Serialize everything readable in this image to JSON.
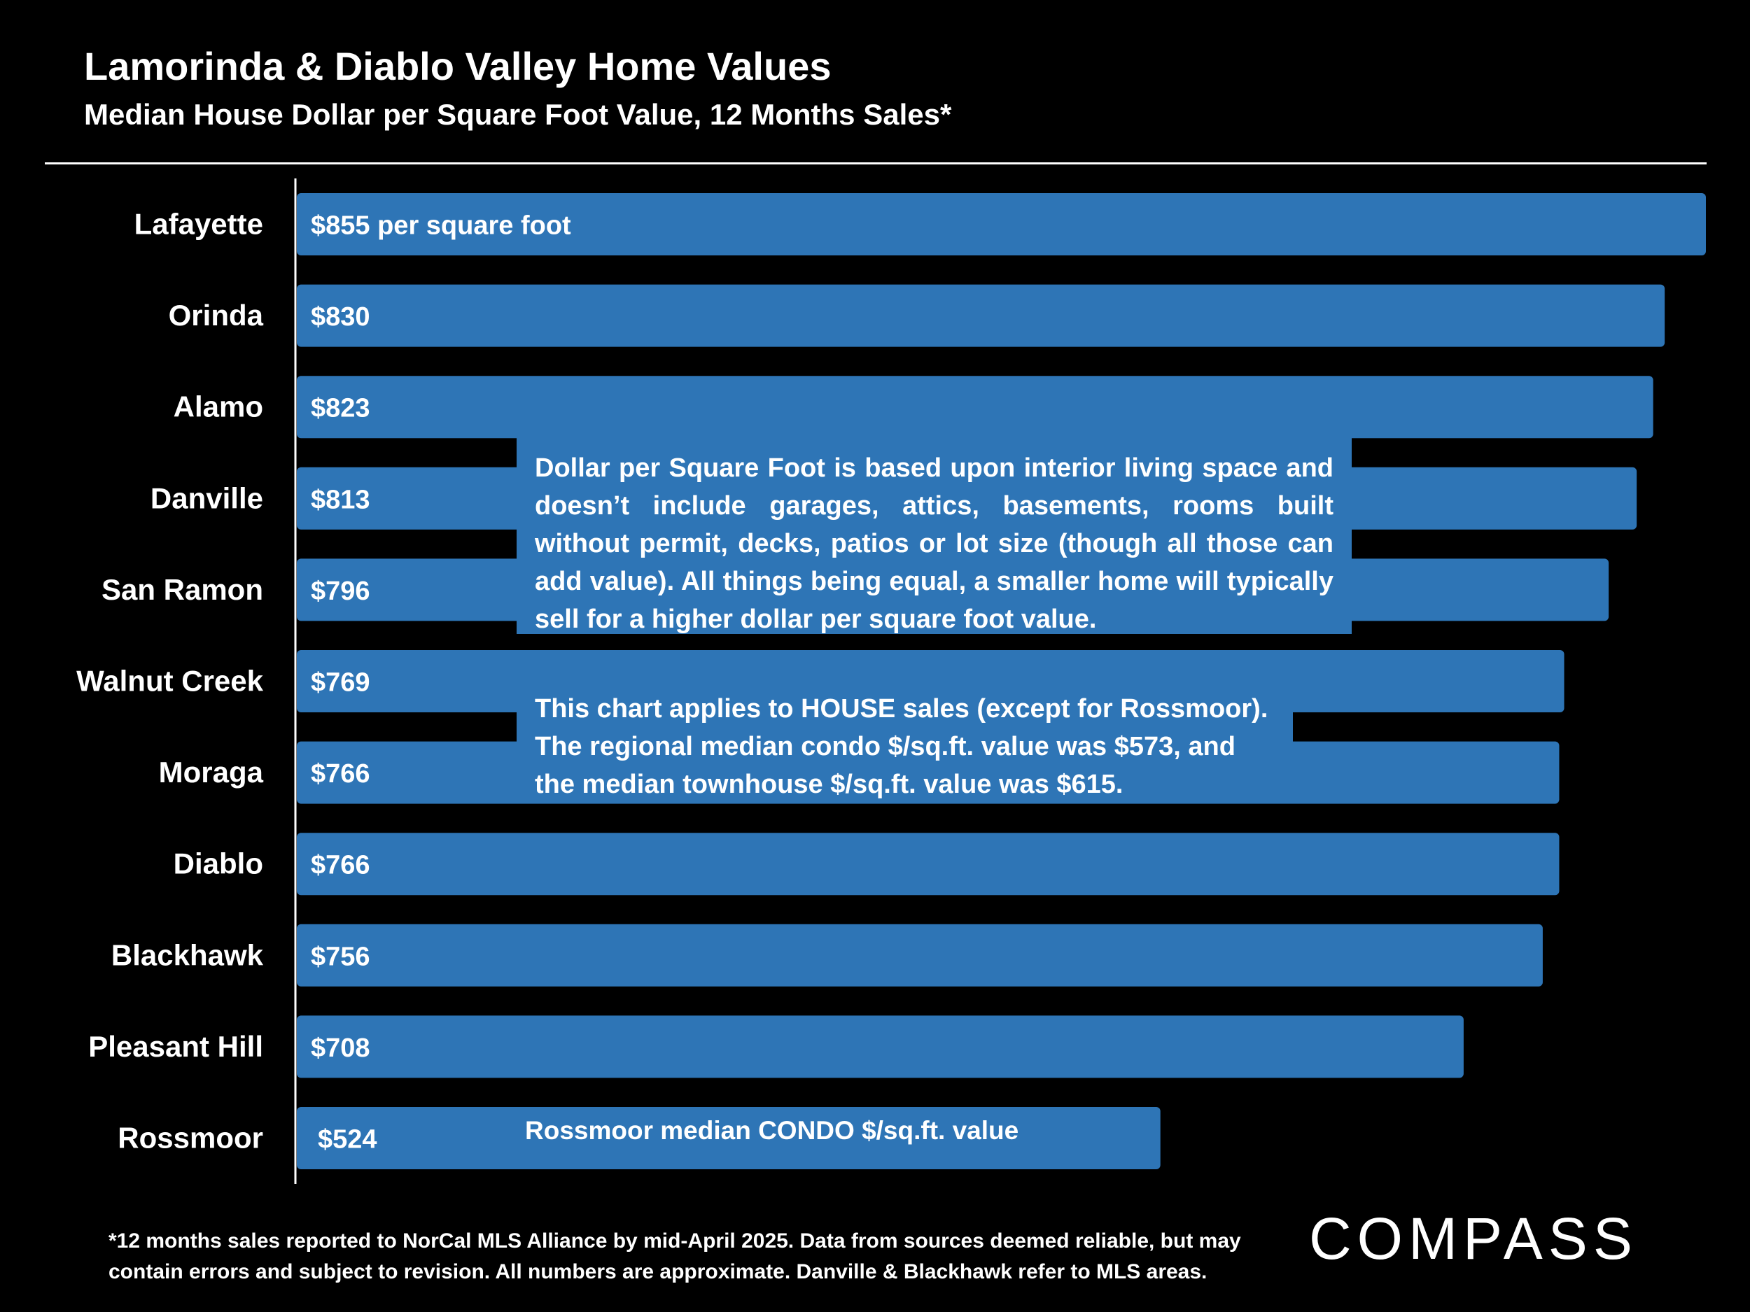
{
  "title": "Lamorinda & Diablo Valley Home Values",
  "subtitle": "Median House Dollar per Square Foot Value, 12 Months Sales*",
  "chart_data": {
    "type": "bar",
    "orientation": "horizontal",
    "categories": [
      "Lafayette",
      "Orinda",
      "Alamo",
      "Danville",
      "San Ramon",
      "Walnut Creek",
      "Moraga",
      "Diablo",
      "Blackhawk",
      "Pleasant Hill",
      "Rossmoor"
    ],
    "values": [
      855,
      830,
      823,
      813,
      796,
      769,
      766,
      766,
      756,
      708,
      524
    ],
    "value_labels": [
      "$855 per square foot",
      "$830",
      "$823",
      "$813",
      "$796",
      "$769",
      "$766",
      "$766",
      "$756",
      "$708",
      "$524"
    ],
    "xlim": [
      0,
      855
    ],
    "bar_color": "#2e75b6",
    "grid": false,
    "legend": "none"
  },
  "annotations": {
    "note1": "Dollar per Square Foot is based upon interior living space and doesn’t include garages, attics, basements, rooms built without permit, decks, patios or lot size (though all those can add value). All things being equal, a smaller home will typically sell for a higher dollar per square foot value.",
    "note2": "This chart applies to HOUSE sales (except for Rossmoor). The regional median condo $/sq.ft. value was $573, and the median townhouse $/sq.ft. value was $615.",
    "rossmoor": "Rossmoor median CONDO $/sq.ft. value"
  },
  "footnote": "*12 months sales reported to NorCal MLS Alliance by mid-April 2025. Data from sources deemed reliable, but may contain errors and subject to revision. All numbers are approximate. Danville & Blackhawk refer to MLS areas.",
  "logo": "COMPASS",
  "colors": {
    "background": "#000000",
    "bar": "#2e75b6",
    "text": "#ffffff"
  }
}
